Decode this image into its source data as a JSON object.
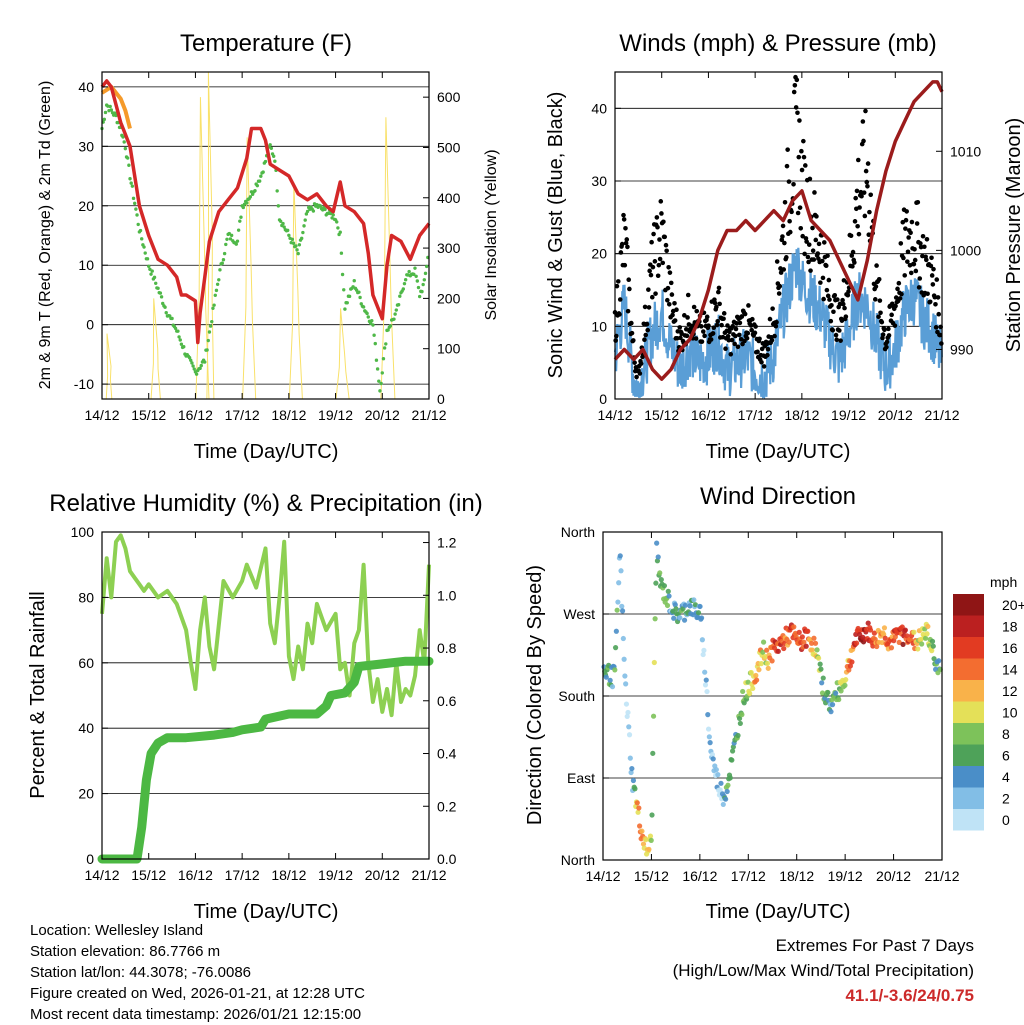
{
  "figure": {
    "info_lines": [
      "Location: Wellesley Island",
      "Station elevation: 86.7766 m",
      "Station lat/lon: 44.3078; -76.0086",
      "Figure created on Wed, 2026-01-21, at 12:28 UTC",
      "Most recent data timestamp: 2026/01/21 12:15:00"
    ],
    "extremes_title": "Extremes For Past 7 Days",
    "extremes_subtitle": "(High/Low/Max Wind/Total Precipitation)",
    "extremes_values": "41.1/-3.6/24/0.75",
    "extremes_color": "#cc2a2a"
  },
  "chart_data": [
    {
      "id": "temp",
      "type": "line",
      "title": "Temperature (F)",
      "xlabel": "Time (Day/UTC)",
      "ylabel": "2m & 9m T (Red, Orange) & 2m Td (Green)",
      "y2label": "Solar Insolation (Yellow)",
      "categories": [
        "14/12",
        "15/12",
        "16/12",
        "17/12",
        "18/12",
        "19/12",
        "20/12",
        "21/12"
      ],
      "xlim": [
        0,
        7
      ],
      "ylim": [
        -12.5,
        42.5
      ],
      "yticks": [
        -10,
        0,
        10,
        20,
        30,
        40
      ],
      "y2lim": [
        0,
        650
      ],
      "y2ticks": [
        0,
        100,
        200,
        300,
        400,
        500,
        600
      ],
      "series": [
        {
          "name": "2m T",
          "color": "#d42828",
          "axis": "left",
          "x": [
            0,
            0.1,
            0.2,
            0.3,
            0.4,
            0.5,
            0.6,
            0.7,
            0.8,
            1.0,
            1.2,
            1.4,
            1.6,
            1.7,
            1.8,
            2.0,
            2.05,
            2.1,
            2.2,
            2.3,
            2.5,
            2.7,
            2.9,
            3.1,
            3.2,
            3.3,
            3.4,
            3.5,
            3.6,
            3.8,
            4.0,
            4.2,
            4.4,
            4.6,
            4.8,
            4.95,
            5.1,
            5.2,
            5.4,
            5.6,
            5.7,
            5.8,
            6.0,
            6.1,
            6.2,
            6.4,
            6.6,
            6.8,
            7.0
          ],
          "values": [
            40,
            41,
            40,
            37,
            34,
            32,
            30,
            25,
            20,
            15,
            11,
            10,
            8,
            5,
            5,
            4,
            -3,
            2,
            8,
            14,
            19,
            21,
            23,
            28,
            33,
            33,
            33,
            31,
            27,
            26,
            25,
            22,
            21,
            22,
            20,
            19,
            24,
            20,
            19,
            17,
            12,
            5,
            1,
            10,
            15,
            14,
            11,
            15,
            17
          ]
        },
        {
          "name": "9m T",
          "color": "#f59a2a",
          "axis": "left",
          "x": [
            0,
            0.2,
            0.4,
            0.5,
            0.6
          ],
          "values": [
            39,
            40,
            38,
            36,
            33
          ]
        },
        {
          "name": "2m Td",
          "color": "#4fb848",
          "axis": "left",
          "x": [
            0,
            0.1,
            0.2,
            0.3,
            0.4,
            0.5,
            0.6,
            0.8,
            1.0,
            1.2,
            1.4,
            1.6,
            1.8,
            2.0,
            2.2,
            2.5,
            2.7,
            2.9,
            3.0,
            3.2,
            3.4,
            3.6,
            3.7,
            3.8,
            4.0,
            4.2,
            4.4,
            4.6,
            4.8,
            5.0,
            5.1,
            5.2,
            5.4,
            5.6,
            5.8,
            5.95,
            6.1,
            6.3,
            6.5,
            6.7,
            6.8,
            6.9,
            7.0
          ],
          "values": [
            33,
            37,
            36,
            35,
            33,
            30,
            25,
            16,
            10,
            6,
            2,
            -1,
            -5,
            -8,
            -6,
            8,
            15,
            14,
            20,
            22,
            25,
            30,
            28,
            18,
            15,
            12,
            19,
            20,
            19,
            18,
            15,
            3,
            7,
            3,
            0,
            -11,
            -1,
            2,
            8,
            9,
            5,
            7,
            13
          ]
        },
        {
          "name": "Solar Insolation",
          "color": "#f9e16a",
          "axis": "right",
          "kind": "spikes",
          "spikes": [
            {
              "x": 0.15,
              "peak": 130,
              "w": 0.12
            },
            {
              "x": 1.15,
              "peak": 200,
              "w": 0.2
            },
            {
              "x": 2.15,
              "peak": 600,
              "w": 0.28
            },
            {
              "x": 2.32,
              "peak": 650,
              "w": 0.15
            },
            {
              "x": 3.15,
              "peak": 520,
              "w": 0.28
            },
            {
              "x": 4.15,
              "peak": 430,
              "w": 0.28
            },
            {
              "x": 5.15,
              "peak": 180,
              "w": 0.28
            },
            {
              "x": 6.12,
              "peak": 560,
              "w": 0.3
            }
          ]
        }
      ]
    },
    {
      "id": "wind",
      "type": "scatter",
      "title": "Winds (mph) & Pressure (mb)",
      "xlabel": "Time (Day/UTC)",
      "ylabel": "Sonic Wind & Gust (Blue, Black)",
      "y2label": "Station Pressure (Maroon)",
      "categories": [
        "14/12",
        "15/12",
        "16/12",
        "17/12",
        "18/12",
        "19/12",
        "20/12",
        "21/12"
      ],
      "xlim": [
        0,
        7
      ],
      "ylim": [
        0,
        45
      ],
      "yticks": [
        0,
        10,
        20,
        30,
        40
      ],
      "y2lim": [
        985,
        1018
      ],
      "y2ticks": [
        990,
        1000,
        1010
      ],
      "series": [
        {
          "name": "Sonic Wind",
          "color": "#5a9ed6",
          "axis": "left",
          "x": [
            0,
            0.2,
            0.4,
            0.5,
            0.6,
            0.8,
            1.0,
            1.2,
            1.4,
            1.6,
            1.8,
            2.0,
            2.2,
            2.4,
            2.6,
            2.8,
            3.0,
            3.2,
            3.4,
            3.6,
            3.8,
            3.9,
            4.0,
            4.2,
            4.4,
            4.6,
            4.8,
            5.0,
            5.2,
            5.4,
            5.6,
            5.8,
            6.0,
            6.2,
            6.4,
            6.6,
            6.8,
            7.0
          ],
          "values": [
            6,
            13,
            3,
            1,
            4,
            9,
            12,
            7,
            4,
            7,
            5,
            6,
            8,
            4,
            5,
            6,
            4,
            3,
            6,
            12,
            17,
            19,
            16,
            14,
            12,
            8,
            5,
            9,
            14,
            13,
            8,
            4,
            7,
            12,
            14,
            11,
            9,
            5
          ]
        },
        {
          "name": "Sonic Gust",
          "color": "#000000",
          "axis": "left",
          "x": [
            0,
            0.2,
            0.4,
            0.5,
            0.6,
            0.8,
            1.0,
            1.2,
            1.4,
            1.6,
            1.8,
            2.0,
            2.2,
            2.4,
            2.6,
            2.8,
            3.0,
            3.2,
            3.4,
            3.6,
            3.8,
            3.9,
            4.0,
            4.2,
            4.4,
            4.6,
            4.8,
            5.0,
            5.2,
            5.4,
            5.6,
            5.8,
            6.0,
            6.2,
            6.4,
            6.6,
            6.8,
            7.0
          ],
          "values": [
            10,
            22,
            6,
            3,
            8,
            18,
            23,
            13,
            8,
            12,
            9,
            10,
            13,
            8,
            9,
            11,
            8,
            6,
            11,
            22,
            33,
            36,
            29,
            24,
            21,
            14,
            10,
            17,
            28,
            32,
            15,
            8,
            13,
            21,
            23,
            19,
            16,
            9
          ]
        },
        {
          "name": "Station Pressure",
          "color": "#9b1c1c",
          "axis": "right",
          "x": [
            0,
            0.2,
            0.4,
            0.6,
            0.8,
            1.0,
            1.2,
            1.4,
            1.6,
            1.8,
            2.0,
            2.2,
            2.4,
            2.6,
            2.8,
            3.0,
            3.2,
            3.4,
            3.6,
            3.8,
            4.0,
            4.2,
            4.4,
            4.6,
            4.8,
            5.0,
            5.2,
            5.4,
            5.6,
            5.8,
            6.0,
            6.2,
            6.4,
            6.6,
            6.8,
            6.9,
            7.0
          ],
          "values": [
            989,
            990,
            989,
            990,
            988,
            987,
            988,
            990,
            991,
            993,
            996,
            1000,
            1002,
            1002,
            1003,
            1002,
            1003,
            1004,
            1003,
            1005,
            1006,
            1003,
            1002,
            1001,
            999,
            997,
            995,
            999,
            1004,
            1008,
            1011,
            1013,
            1015,
            1016,
            1017,
            1017,
            1016
          ]
        }
      ]
    },
    {
      "id": "rh",
      "type": "line",
      "title": "Relative Humidity (%) & Precipitation (in)",
      "xlabel": "Time (Day/UTC)",
      "ylabel": "Percent & Total Rainfall",
      "categories": [
        "14/12",
        "15/12",
        "16/12",
        "17/12",
        "18/12",
        "19/12",
        "20/12",
        "21/12"
      ],
      "xlim": [
        0,
        7
      ],
      "ylim": [
        0,
        100
      ],
      "yticks": [
        0,
        20,
        40,
        60,
        80,
        100
      ],
      "y2lim": [
        0,
        1.24
      ],
      "y2ticks": [
        0.0,
        0.2,
        0.4,
        0.6,
        0.8,
        1.0,
        1.2
      ],
      "series": [
        {
          "name": "Relative Humidity",
          "color": "#8dd052",
          "axis": "left",
          "x": [
            0,
            0.1,
            0.2,
            0.3,
            0.4,
            0.5,
            0.6,
            0.7,
            0.8,
            0.9,
            1.0,
            1.2,
            1.4,
            1.6,
            1.8,
            1.9,
            2.0,
            2.1,
            2.2,
            2.3,
            2.4,
            2.6,
            2.8,
            3.0,
            3.1,
            3.3,
            3.5,
            3.6,
            3.7,
            3.8,
            3.9,
            4.0,
            4.1,
            4.2,
            4.3,
            4.4,
            4.5,
            4.6,
            4.8,
            5.0,
            5.1,
            5.2,
            5.3,
            5.4,
            5.5,
            5.6,
            5.7,
            5.8,
            5.9,
            6.0,
            6.1,
            6.2,
            6.3,
            6.4,
            6.5,
            6.6,
            6.7,
            6.8,
            6.9,
            7.0
          ],
          "values": [
            75,
            92,
            80,
            97,
            99,
            95,
            88,
            86,
            84,
            82,
            84,
            80,
            82,
            78,
            70,
            60,
            52,
            70,
            80,
            65,
            58,
            85,
            80,
            85,
            90,
            83,
            95,
            72,
            66,
            80,
            97,
            62,
            55,
            65,
            58,
            72,
            66,
            78,
            70,
            75,
            58,
            60,
            50,
            66,
            70,
            90,
            60,
            48,
            55,
            45,
            52,
            44,
            60,
            48,
            52,
            50,
            56,
            70,
            60,
            90
          ]
        },
        {
          "name": "Total Precipitation",
          "color": "#4cb843",
          "axis": "right",
          "x": [
            0,
            0.3,
            0.6,
            0.75,
            0.85,
            0.95,
            1.05,
            1.2,
            1.4,
            1.8,
            2.4,
            2.8,
            3.0,
            3.4,
            3.5,
            4.0,
            4.6,
            4.8,
            4.9,
            5.2,
            5.4,
            5.5,
            6.0,
            6.5,
            7.0
          ],
          "values": [
            0,
            0,
            0,
            0,
            0.12,
            0.3,
            0.4,
            0.44,
            0.46,
            0.46,
            0.47,
            0.48,
            0.49,
            0.5,
            0.53,
            0.55,
            0.55,
            0.58,
            0.62,
            0.63,
            0.67,
            0.73,
            0.74,
            0.75,
            0.75
          ]
        }
      ]
    },
    {
      "id": "wdir",
      "type": "scatter",
      "title": "Wind Direction",
      "xlabel": "Time (Day/UTC)",
      "ylabel": "Direction (Colored By Speed)",
      "categories": [
        "14/12",
        "15/12",
        "16/12",
        "17/12",
        "18/12",
        "19/12",
        "20/12",
        "21/12"
      ],
      "xlim": [
        0,
        7
      ],
      "ylim": [
        0,
        360
      ],
      "yticks": [
        0,
        90,
        180,
        270,
        360
      ],
      "ytick_labels": [
        "North",
        "East",
        "South",
        "West",
        "North"
      ],
      "colorbar": {
        "title": "mph",
        "labels": [
          "0",
          "2",
          "4",
          "6",
          "8",
          "10",
          "12",
          "14",
          "16",
          "18",
          "20+"
        ],
        "colors": [
          "#bfe3f6",
          "#82bee6",
          "#4a8ec8",
          "#4ea259",
          "#7dc25a",
          "#e4e058",
          "#f9b24a",
          "#f36d30",
          "#e23b22",
          "#bb2020",
          "#8f1515"
        ]
      },
      "series": [
        {
          "name": "direction",
          "x": [
            0,
            0.1,
            0.2,
            0.25,
            0.35,
            0.45,
            0.55,
            0.6,
            0.7,
            0.8,
            0.9,
            1.0,
            1.1,
            1.2,
            1.3,
            1.4,
            1.5,
            1.6,
            1.7,
            1.8,
            1.9,
            2.0,
            2.05,
            2.1,
            2.15,
            2.2,
            2.3,
            2.4,
            2.5,
            2.6,
            2.7,
            2.8,
            2.9,
            3.0,
            3.1,
            3.2,
            3.3,
            3.4,
            3.5,
            3.6,
            3.7,
            3.8,
            3.9,
            4.0,
            4.1,
            4.2,
            4.3,
            4.4,
            4.5,
            4.6,
            4.7,
            4.8,
            4.9,
            5.0,
            5.1,
            5.2,
            5.3,
            5.4,
            5.5,
            5.6,
            5.7,
            5.8,
            5.9,
            6.0,
            6.1,
            6.2,
            6.3,
            6.4,
            6.5,
            6.6,
            6.7,
            6.8,
            6.9,
            7.0
          ],
          "values": [
            210,
            205,
            200,
            210,
            340,
            200,
            130,
            90,
            60,
            30,
            10,
            20,
            340,
            300,
            290,
            280,
            270,
            270,
            275,
            280,
            275,
            270,
            250,
            210,
            180,
            130,
            100,
            80,
            70,
            90,
            120,
            150,
            180,
            190,
            200,
            210,
            230,
            220,
            230,
            235,
            240,
            245,
            250,
            240,
            240,
            245,
            240,
            230,
            200,
            180,
            170,
            180,
            190,
            200,
            220,
            240,
            245,
            250,
            250,
            240,
            245,
            250,
            240,
            240,
            250,
            245,
            250,
            240,
            240,
            245,
            250,
            230,
            215,
            200
          ],
          "speeds": [
            6,
            9,
            5,
            8,
            3,
            2,
            1,
            4,
            12,
            15,
            12,
            10,
            7,
            6,
            8,
            4,
            5,
            6,
            5,
            6,
            5,
            4,
            3,
            3,
            3,
            4,
            3,
            2,
            6,
            7,
            6,
            7,
            9,
            10,
            12,
            14,
            11,
            13,
            16,
            18,
            17,
            14,
            18,
            15,
            17,
            16,
            14,
            12,
            8,
            7,
            6,
            8,
            9,
            10,
            14,
            17,
            18,
            19,
            18,
            16,
            12,
            14,
            15,
            16,
            17,
            18,
            16,
            14,
            12,
            10,
            11,
            9,
            7,
            6
          ]
        }
      ]
    }
  ]
}
